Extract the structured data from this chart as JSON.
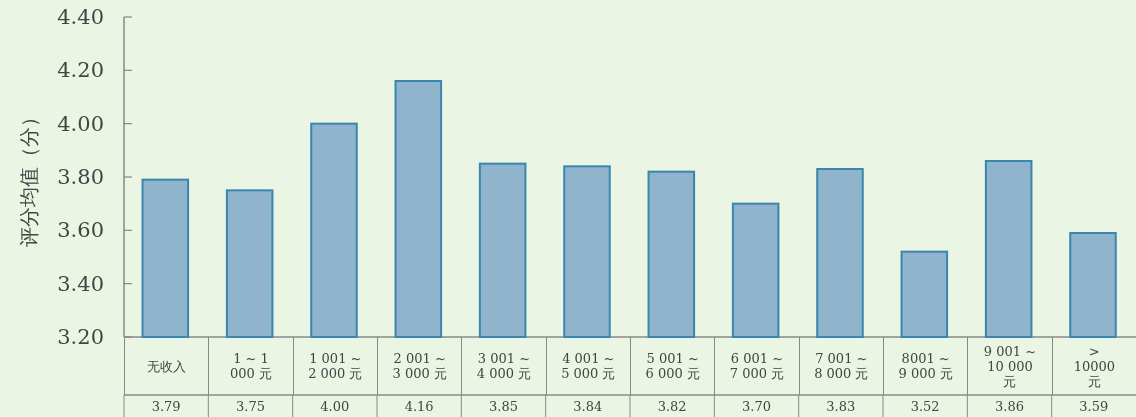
{
  "chart_data": {
    "type": "bar",
    "ylabel": "评分均值（分）",
    "categories": [
      "无收入",
      "1 ~ 1 000 元",
      "1 001 ~ 2 000 元",
      "2 001 ~ 3 000 元",
      "3 001 ~ 4 000 元",
      "4 001 ~ 5 000 元",
      "5 001 ~ 6 000 元",
      "6 001 ~ 7 000 元",
      "7 001 ~ 8 000 元",
      "8001 ~ 9 000 元",
      "9 001 ~ 10 000 元",
      "> 10000 元"
    ],
    "values": [
      3.79,
      3.75,
      4.0,
      4.16,
      3.85,
      3.84,
      3.82,
      3.7,
      3.83,
      3.52,
      3.86,
      3.59
    ],
    "color": "#8fb4cb",
    "ylim": [
      3.2,
      4.4
    ],
    "yticks": [
      {
        "value": 3.2,
        "label": "3.20"
      },
      {
        "value": 3.4,
        "label": "3.40"
      },
      {
        "value": 3.6,
        "label": "3.60"
      },
      {
        "value": 3.8,
        "label": "3.80"
      },
      {
        "value": 4.0,
        "label": "4.00"
      },
      {
        "value": 4.2,
        "label": "4.20"
      },
      {
        "value": 4.4,
        "label": "4.40"
      }
    ],
    "value_labels": [
      "3.79",
      "3.75",
      "4.00",
      "4.16",
      "3.85",
      "3.84",
      "3.82",
      "3.70",
      "3.83",
      "3.52",
      "3.86",
      "3.59"
    ],
    "grid": false
  }
}
